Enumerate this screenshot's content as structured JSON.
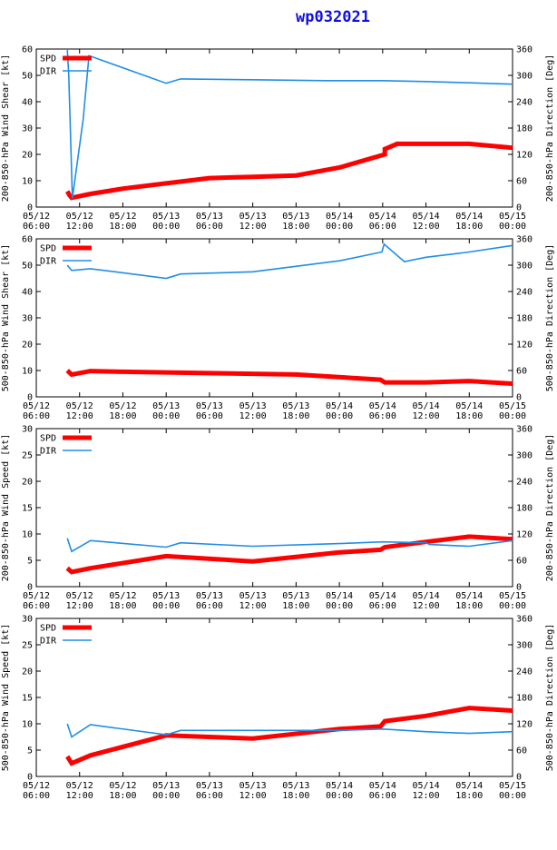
{
  "title": "wp032021",
  "colors": {
    "spd": "#ff0000",
    "dir": "#1e8ee6",
    "axis": "#000000"
  },
  "x_ticks": [
    [
      "05/12",
      "06:00"
    ],
    [
      "05/12",
      "12:00"
    ],
    [
      "05/12",
      "18:00"
    ],
    [
      "05/13",
      "00:00"
    ],
    [
      "05/13",
      "06:00"
    ],
    [
      "05/13",
      "12:00"
    ],
    [
      "05/13",
      "18:00"
    ],
    [
      "05/14",
      "00:00"
    ],
    [
      "05/14",
      "06:00"
    ],
    [
      "05/14",
      "12:00"
    ],
    [
      "05/14",
      "18:00"
    ],
    [
      "05/15",
      "00:00"
    ]
  ],
  "chart_data": [
    {
      "type": "line",
      "ylabel_left": "200-850-hPa Wind Shear [kt]",
      "ylabel_right": "200-850-hPa Direction [Deg]",
      "ylim_left": [
        0,
        60
      ],
      "yticks_left": [
        0,
        10,
        20,
        30,
        40,
        50,
        60
      ],
      "ylim_right": [
        0,
        360
      ],
      "yticks_right": [
        0,
        60,
        120,
        180,
        240,
        300,
        360
      ],
      "xlim_hours": [
        0,
        66
      ],
      "legend": [
        "SPD",
        "DIR"
      ],
      "series": [
        {
          "name": "SPD",
          "axis": "left",
          "x": [
            4.3,
            4.6,
            4.9,
            7.5,
            12,
            18,
            24,
            30,
            36,
            42,
            47.7,
            48.3,
            48.3,
            50,
            54,
            60,
            66
          ],
          "y": [
            6,
            4.5,
            3.5,
            5,
            7,
            9,
            11,
            11.5,
            12,
            15,
            19.5,
            20,
            22,
            24,
            24,
            24,
            22.5
          ]
        },
        {
          "name": "DIR",
          "axis": "right",
          "x": [
            4.3,
            4.5,
            5.0,
            6.5,
            7.3,
            18,
            20,
            30,
            40,
            48,
            54,
            60,
            66
          ],
          "y": [
            360,
            300,
            20,
            200,
            345,
            282,
            292,
            290,
            288,
            288,
            286,
            283,
            280
          ]
        }
      ]
    },
    {
      "type": "line",
      "ylabel_left": "500-850-hPa Wind Shear [kt]",
      "ylabel_right": "500-850-hPa Direction [Deg]",
      "ylim_left": [
        0,
        60
      ],
      "yticks_left": [
        0,
        10,
        20,
        30,
        40,
        50,
        60
      ],
      "ylim_right": [
        0,
        360
      ],
      "yticks_right": [
        0,
        60,
        120,
        180,
        240,
        300,
        360
      ],
      "xlim_hours": [
        0,
        66
      ],
      "legend": [
        "SPD",
        "DIR"
      ],
      "series": [
        {
          "name": "SPD",
          "axis": "left",
          "x": [
            4.3,
            4.9,
            7.5,
            12,
            24,
            36,
            47.7,
            48.3,
            54,
            60,
            66
          ],
          "y": [
            10,
            8.5,
            9.8,
            9.5,
            9,
            8.5,
            6.5,
            5.5,
            5.5,
            6,
            5
          ]
        },
        {
          "name": "DIR",
          "axis": "right",
          "x": [
            4.3,
            4.9,
            7.5,
            18,
            20,
            30,
            42,
            47.9,
            48.2,
            51,
            54,
            60,
            66
          ],
          "y": [
            300,
            288,
            292,
            270,
            280,
            285,
            310,
            330,
            348,
            308,
            318,
            330,
            345
          ]
        }
      ]
    },
    {
      "type": "line",
      "ylabel_left": "200-850-hPa Wind Speed [kt]",
      "ylabel_right": "200-850-hPa Direction [Deg]",
      "ylim_left": [
        0,
        30
      ],
      "yticks_left": [
        0,
        5,
        10,
        15,
        20,
        25,
        30
      ],
      "ylim_right": [
        0,
        360
      ],
      "yticks_right": [
        0,
        60,
        120,
        180,
        240,
        300,
        360
      ],
      "xlim_hours": [
        0,
        66
      ],
      "legend": [
        "SPD",
        "DIR"
      ],
      "series": [
        {
          "name": "SPD",
          "axis": "left",
          "x": [
            4.3,
            4.9,
            7.5,
            18,
            30,
            42,
            47.7,
            48.3,
            54,
            60,
            66
          ],
          "y": [
            3.5,
            2.8,
            3.5,
            5.8,
            4.8,
            6.5,
            7,
            7.5,
            8.5,
            9.5,
            9
          ]
        },
        {
          "name": "DIR",
          "axis": "right",
          "x": [
            4.3,
            4.9,
            7.5,
            18,
            20,
            30,
            42,
            48,
            54,
            54.5,
            60,
            66
          ],
          "y": [
            110,
            80,
            105,
            90,
            100,
            92,
            98,
            102,
            100,
            96,
            92,
            105
          ]
        }
      ]
    },
    {
      "type": "line",
      "ylabel_left": "500-850-hPa Wind Speed [kt]",
      "ylabel_right": "500-850-hPa Direction [Deg]",
      "ylim_left": [
        0,
        30
      ],
      "yticks_left": [
        0,
        5,
        10,
        15,
        20,
        25,
        30
      ],
      "ylim_right": [
        0,
        360
      ],
      "yticks_right": [
        0,
        60,
        120,
        180,
        240,
        300,
        360
      ],
      "xlim_hours": [
        0,
        66
      ],
      "legend": [
        "SPD",
        "DIR"
      ],
      "series": [
        {
          "name": "SPD",
          "axis": "left",
          "x": [
            4.3,
            4.9,
            7.5,
            18,
            24,
            30,
            42,
            47.7,
            48.3,
            54,
            60,
            66
          ],
          "y": [
            3.8,
            2.5,
            4,
            7.8,
            7.5,
            7.2,
            9,
            9.5,
            10.5,
            11.5,
            13,
            12.5
          ]
        },
        {
          "name": "DIR",
          "axis": "right",
          "x": [
            4.3,
            4.9,
            7.5,
            18,
            20,
            30,
            42,
            48,
            54,
            60,
            66
          ],
          "y": [
            120,
            90,
            118,
            95,
            105,
            105,
            105,
            108,
            102,
            98,
            102
          ]
        }
      ]
    }
  ]
}
